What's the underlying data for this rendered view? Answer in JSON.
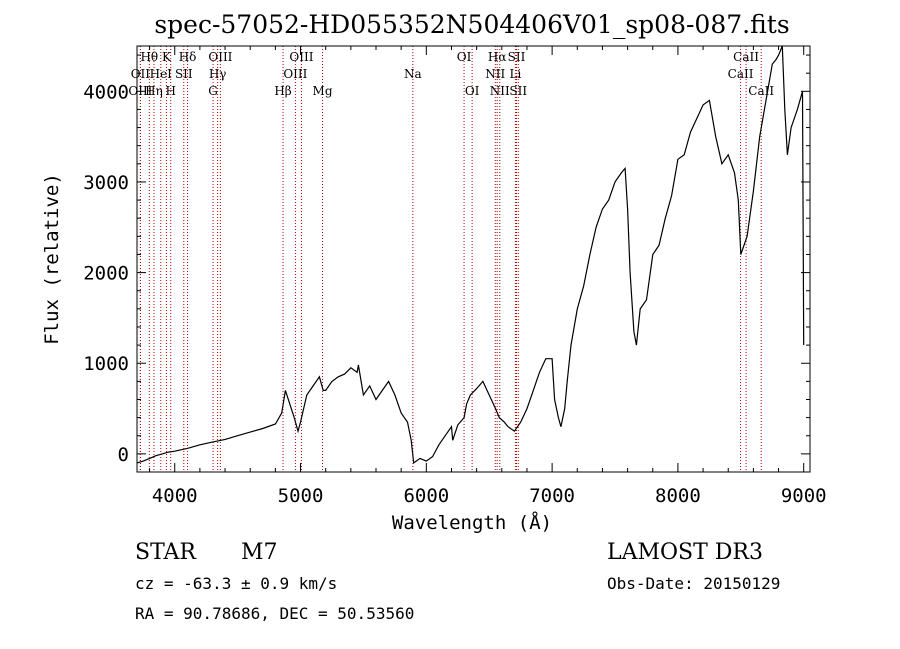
{
  "chart_data": {
    "type": "line",
    "title": "spec-57052-HD055352N504406V01_sp08-087.fits",
    "xlabel": "Wavelength (Å)",
    "ylabel": "Flux (relative)",
    "xlim": [
      3700,
      9050
    ],
    "ylim": [
      -200,
      4500
    ],
    "x_ticks": [
      4000,
      5000,
      6000,
      7000,
      8000,
      9000
    ],
    "y_ticks": [
      0,
      1000,
      2000,
      3000,
      4000
    ],
    "series": [
      {
        "name": "spectrum",
        "x": [
          3700,
          3750,
          3800,
          3850,
          3900,
          3950,
          4000,
          4100,
          4200,
          4300,
          4400,
          4500,
          4600,
          4700,
          4800,
          4850,
          4880,
          4950,
          4980,
          5000,
          5050,
          5100,
          5150,
          5180,
          5200,
          5250,
          5300,
          5350,
          5400,
          5450,
          5460,
          5500,
          5550,
          5600,
          5650,
          5700,
          5750,
          5800,
          5850,
          5880,
          5900,
          5950,
          6000,
          6050,
          6100,
          6150,
          6200,
          6210,
          6250,
          6300,
          6320,
          6350,
          6400,
          6450,
          6500,
          6550,
          6580,
          6620,
          6650,
          6700,
          6750,
          6800,
          6850,
          6900,
          6950,
          7000,
          7020,
          7050,
          7070,
          7100,
          7120,
          7150,
          7200,
          7250,
          7300,
          7350,
          7400,
          7450,
          7500,
          7550,
          7580,
          7600,
          7620,
          7650,
          7670,
          7700,
          7750,
          7800,
          7850,
          7900,
          7950,
          8000,
          8050,
          8100,
          8150,
          8200,
          8250,
          8300,
          8350,
          8400,
          8450,
          8480,
          8500,
          8550,
          8600,
          8650,
          8700,
          8750,
          8780,
          8800,
          8830,
          8850,
          8870,
          8900,
          8950,
          8990,
          9000
        ],
        "y": [
          -100,
          -80,
          -50,
          -20,
          0,
          20,
          30,
          60,
          100,
          130,
          160,
          200,
          240,
          280,
          330,
          450,
          700,
          400,
          250,
          350,
          650,
          750,
          850,
          700,
          700,
          800,
          850,
          880,
          950,
          900,
          980,
          650,
          750,
          600,
          700,
          800,
          650,
          450,
          350,
          150,
          -100,
          -50,
          -80,
          -30,
          100,
          200,
          300,
          150,
          320,
          400,
          550,
          650,
          720,
          800,
          650,
          500,
          400,
          350,
          300,
          250,
          350,
          500,
          700,
          900,
          1050,
          1050,
          600,
          400,
          300,
          500,
          800,
          1200,
          1600,
          1850,
          2200,
          2500,
          2700,
          2800,
          3000,
          3100,
          3150,
          2700,
          2000,
          1350,
          1200,
          1600,
          1700,
          2200,
          2300,
          2600,
          2850,
          3250,
          3300,
          3550,
          3700,
          3850,
          3900,
          3500,
          3200,
          3300,
          3100,
          2800,
          2200,
          2400,
          2900,
          3500,
          3900,
          4300,
          4350,
          4400,
          4500,
          3800,
          3300,
          3600,
          3800,
          4000,
          1200
        ]
      }
    ],
    "line_markers": [
      {
        "name": "Hθ",
        "wavelength": 3798,
        "row": 1
      },
      {
        "name": "OII",
        "wavelength": 3727,
        "row": 2
      },
      {
        "name": "OIII",
        "wavelength": 3727,
        "row": 3
      },
      {
        "name": "K",
        "wavelength": 3934,
        "row": 1
      },
      {
        "name": "HeI",
        "wavelength": 3889,
        "row": 2
      },
      {
        "name": "Hη",
        "wavelength": 3835,
        "row": 3
      },
      {
        "name": "H",
        "wavelength": 3968,
        "row": 3
      },
      {
        "name": "Hδ",
        "wavelength": 4102,
        "row": 1
      },
      {
        "name": "SII",
        "wavelength": 4072,
        "row": 2
      },
      {
        "name": "OIII",
        "wavelength": 4363,
        "row": 1
      },
      {
        "name": "Hγ",
        "wavelength": 4341,
        "row": 2
      },
      {
        "name": "G",
        "wavelength": 4305,
        "row": 3
      },
      {
        "name": "OIII",
        "wavelength": 5007,
        "row": 1
      },
      {
        "name": "OIII",
        "wavelength": 4959,
        "row": 2
      },
      {
        "name": "Hβ",
        "wavelength": 4861,
        "row": 3
      },
      {
        "name": "Mg",
        "wavelength": 5175,
        "row": 3
      },
      {
        "name": "Na",
        "wavelength": 5893,
        "row": 2
      },
      {
        "name": "OI",
        "wavelength": 6300,
        "row": 1
      },
      {
        "name": "OI",
        "wavelength": 6364,
        "row": 3
      },
      {
        "name": "Hα",
        "wavelength": 6563,
        "row": 1
      },
      {
        "name": "SII",
        "wavelength": 6717,
        "row": 1
      },
      {
        "name": "NII",
        "wavelength": 6548,
        "row": 2
      },
      {
        "name": "Li",
        "wavelength": 6708,
        "row": 2
      },
      {
        "name": "NII",
        "wavelength": 6584,
        "row": 3
      },
      {
        "name": "SII",
        "wavelength": 6731,
        "row": 3
      },
      {
        "name": "CaII",
        "wavelength": 8542,
        "row": 1
      },
      {
        "name": "CaII",
        "wavelength": 8498,
        "row": 2
      },
      {
        "name": "CaII",
        "wavelength": 8662,
        "row": 3
      }
    ]
  },
  "info": {
    "object_class": "STAR",
    "subclass": "M7",
    "survey": "LAMOST DR3",
    "redshift": "cz = -63.3 ± 0.9 km/s",
    "obs_date": "Obs-Date: 20150129",
    "coords": "RA =  90.78686, DEC =  50.53560"
  }
}
